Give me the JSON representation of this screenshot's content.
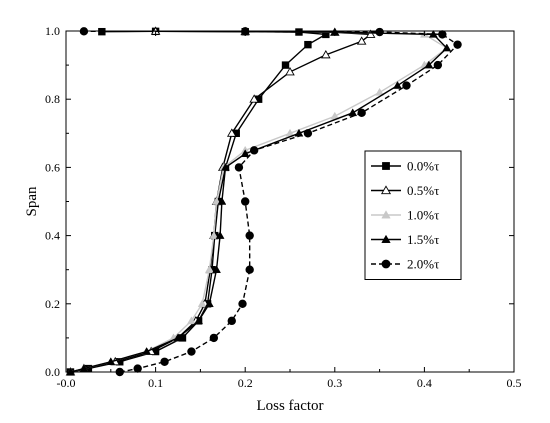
{
  "chart_data": {
    "type": "line",
    "title": "",
    "xlabel": "Loss factor",
    "ylabel": "Span",
    "xlim": [
      0.0,
      0.5
    ],
    "ylim": [
      0.0,
      1.0
    ],
    "x_ticks": [
      "-0.0",
      "0.1",
      "0.2",
      "0.3",
      "0.4",
      "0.5"
    ],
    "x_tick_values": [
      0.0,
      0.1,
      0.2,
      0.3,
      0.4,
      0.5
    ],
    "y_ticks": [
      "0.0",
      "0.2",
      "0.4",
      "0.6",
      "0.8",
      "1.0"
    ],
    "y_tick_values": [
      0.0,
      0.2,
      0.4,
      0.6,
      0.8,
      1.0
    ],
    "grid": false,
    "legend_position": "right",
    "series": [
      {
        "name": "0.0%τ",
        "marker": "square",
        "color": "#000000",
        "dashed": false,
        "points": [
          [
            0.005,
            0.0
          ],
          [
            0.025,
            0.01
          ],
          [
            0.06,
            0.03
          ],
          [
            0.1,
            0.06
          ],
          [
            0.13,
            0.1
          ],
          [
            0.148,
            0.15
          ],
          [
            0.158,
            0.2
          ],
          [
            0.163,
            0.3
          ],
          [
            0.166,
            0.4
          ],
          [
            0.17,
            0.5
          ],
          [
            0.178,
            0.6
          ],
          [
            0.19,
            0.7
          ],
          [
            0.215,
            0.8
          ],
          [
            0.245,
            0.9
          ],
          [
            0.27,
            0.96
          ],
          [
            0.29,
            0.99
          ],
          [
            0.26,
            0.997
          ],
          [
            0.2,
            0.998
          ],
          [
            0.1,
            0.999
          ],
          [
            0.04,
            0.998
          ]
        ]
      },
      {
        "name": "0.5%τ",
        "marker": "triangle-open",
        "color": "#000000",
        "dashed": false,
        "points": [
          [
            0.005,
            0.0
          ],
          [
            0.02,
            0.01
          ],
          [
            0.055,
            0.03
          ],
          [
            0.095,
            0.06
          ],
          [
            0.125,
            0.1
          ],
          [
            0.145,
            0.15
          ],
          [
            0.155,
            0.2
          ],
          [
            0.161,
            0.3
          ],
          [
            0.165,
            0.4
          ],
          [
            0.168,
            0.5
          ],
          [
            0.175,
            0.6
          ],
          [
            0.185,
            0.7
          ],
          [
            0.21,
            0.8
          ],
          [
            0.25,
            0.88
          ],
          [
            0.29,
            0.93
          ],
          [
            0.33,
            0.97
          ],
          [
            0.34,
            0.99
          ],
          [
            0.3,
            0.996
          ],
          [
            0.2,
            0.998
          ],
          [
            0.1,
            0.999
          ]
        ]
      },
      {
        "name": "1.0%τ",
        "marker": "triangle-gray",
        "color": "#c8c8c8",
        "dashed": false,
        "points": [
          [
            0.005,
            0.0
          ],
          [
            0.02,
            0.01
          ],
          [
            0.05,
            0.03
          ],
          [
            0.09,
            0.06
          ],
          [
            0.12,
            0.1
          ],
          [
            0.14,
            0.15
          ],
          [
            0.152,
            0.2
          ],
          [
            0.16,
            0.3
          ],
          [
            0.165,
            0.4
          ],
          [
            0.168,
            0.5
          ],
          [
            0.176,
            0.6
          ],
          [
            0.2,
            0.65
          ],
          [
            0.25,
            0.7
          ],
          [
            0.3,
            0.75
          ],
          [
            0.35,
            0.82
          ],
          [
            0.4,
            0.9
          ],
          [
            0.425,
            0.95
          ],
          [
            0.4,
            0.99
          ],
          [
            0.3,
            0.997
          ],
          [
            0.2,
            0.999
          ]
        ]
      },
      {
        "name": "1.5%τ",
        "marker": "triangle-filled",
        "color": "#000000",
        "dashed": false,
        "points": [
          [
            0.005,
            0.0
          ],
          [
            0.02,
            0.01
          ],
          [
            0.05,
            0.03
          ],
          [
            0.09,
            0.06
          ],
          [
            0.125,
            0.1
          ],
          [
            0.148,
            0.15
          ],
          [
            0.16,
            0.2
          ],
          [
            0.168,
            0.3
          ],
          [
            0.172,
            0.4
          ],
          [
            0.174,
            0.5
          ],
          [
            0.178,
            0.6
          ],
          [
            0.2,
            0.64
          ],
          [
            0.26,
            0.7
          ],
          [
            0.32,
            0.76
          ],
          [
            0.37,
            0.84
          ],
          [
            0.405,
            0.9
          ],
          [
            0.425,
            0.95
          ],
          [
            0.41,
            0.99
          ],
          [
            0.3,
            0.997
          ],
          [
            0.2,
            0.999
          ]
        ]
      },
      {
        "name": "2.0%τ",
        "marker": "circle",
        "color": "#000000",
        "dashed": true,
        "points": [
          [
            0.06,
            0.0
          ],
          [
            0.08,
            0.01
          ],
          [
            0.11,
            0.03
          ],
          [
            0.14,
            0.06
          ],
          [
            0.165,
            0.1
          ],
          [
            0.185,
            0.15
          ],
          [
            0.197,
            0.2
          ],
          [
            0.205,
            0.3
          ],
          [
            0.205,
            0.4
          ],
          [
            0.2,
            0.5
          ],
          [
            0.193,
            0.6
          ],
          [
            0.21,
            0.65
          ],
          [
            0.27,
            0.7
          ],
          [
            0.33,
            0.76
          ],
          [
            0.38,
            0.84
          ],
          [
            0.415,
            0.9
          ],
          [
            0.437,
            0.96
          ],
          [
            0.42,
            0.99
          ],
          [
            0.35,
            0.997
          ],
          [
            0.2,
            0.999
          ],
          [
            0.02,
            0.999
          ]
        ]
      }
    ]
  }
}
